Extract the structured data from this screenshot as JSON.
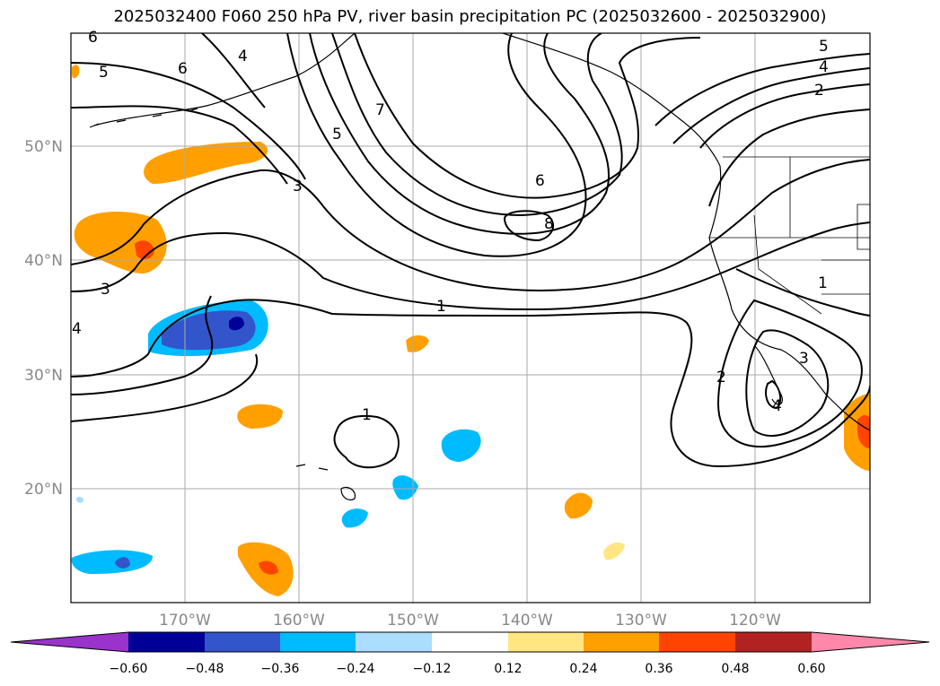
{
  "title": "2025032400 F060 250 hPa PV, river basin precipitation PC (2025032600 - 2025032900)",
  "map": {
    "lon_labels": [
      "170°W",
      "160°W",
      "150°W",
      "140°W",
      "130°W",
      "120°W"
    ],
    "lat_labels": [
      "50°N",
      "40°N",
      "30°N",
      "20°N"
    ],
    "grid_color": "#aaaaaa",
    "label_color": "#888888",
    "contour_labels": [
      "6",
      "5",
      "6",
      "4",
      "7",
      "5",
      "3",
      "6",
      "8",
      "5",
      "4",
      "2",
      "1",
      "3",
      "4",
      "1",
      "2",
      "3",
      "4",
      "1"
    ]
  },
  "colorbar": {
    "tick_labels": [
      "−0.60",
      "−0.48",
      "−0.36",
      "−0.24",
      "−0.12",
      "0.12",
      "0.24",
      "0.36",
      "0.48",
      "0.60"
    ],
    "colors": [
      "#9933cc",
      "#000099",
      "#3355cc",
      "#00bbff",
      "#aaddff",
      "#ffffff",
      "#ffe680",
      "#ffa000",
      "#ff4400",
      "#b22222",
      "#ff88aa"
    ]
  }
}
